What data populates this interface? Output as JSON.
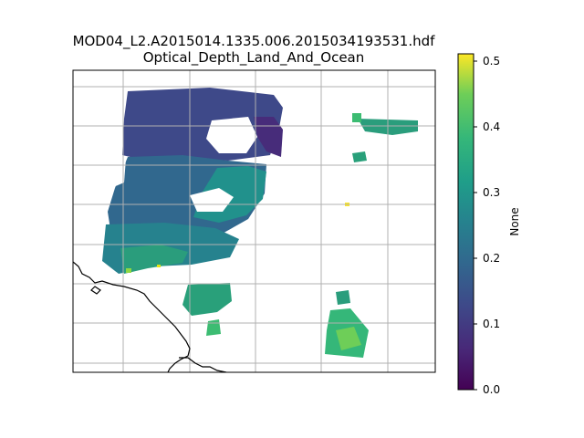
{
  "figure": {
    "title_line1": "MOD04_L2.A2015014.1335.006.2015034193531.hdf",
    "title_line2": "Optical_Depth_Land_And_Ocean"
  },
  "colorbar": {
    "label": "None",
    "colormap": "viridis",
    "ticks": [
      "0.0",
      "0.1",
      "0.2",
      "0.3",
      "0.4",
      "0.5"
    ],
    "min": 0.0,
    "max": 0.51
  },
  "map": {
    "gridlines": true,
    "coastline_color": "#000000",
    "grid_color": "#b0b0b0"
  }
}
